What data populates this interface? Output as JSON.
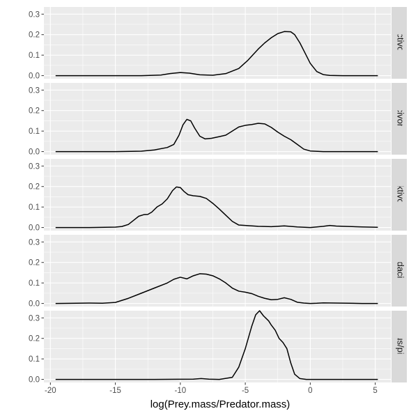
{
  "chart_data": {
    "type": "line",
    "subtype": "density",
    "facet": "rows",
    "xlabel": "log(Prey.mass/Predator.mass)",
    "ylabel": "",
    "xlim": [
      -20.5,
      6.2
    ],
    "ylim": [
      -0.015,
      0.335
    ],
    "x_ticks": [
      -20,
      -15,
      -10,
      -5,
      0,
      5
    ],
    "x_tick_labels": [
      "-20",
      "-15",
      "-10",
      "-5",
      "0",
      "5"
    ],
    "y_ticks": [
      0.0,
      0.1,
      0.2,
      0.3
    ],
    "y_tick_labels": [
      "0.0",
      "0.1",
      "0.2",
      "0.3"
    ],
    "grid": true,
    "panels": [
      {
        "strip_label": "insectivorous",
        "x": [
          -19.6,
          -16,
          -13,
          -11.5,
          -10.8,
          -10,
          -9.3,
          -8.5,
          -7.5,
          -6.5,
          -5.5,
          -4.8,
          -4,
          -3.5,
          -3,
          -2.5,
          -2,
          -1.5,
          -1.2,
          -0.8,
          -0.4,
          0,
          0.5,
          1,
          1.5,
          2.5,
          5.2
        ],
        "y": [
          0.0,
          0.0,
          0.0,
          0.003,
          0.01,
          0.015,
          0.012,
          0.004,
          0.002,
          0.01,
          0.035,
          0.075,
          0.13,
          0.16,
          0.185,
          0.205,
          0.215,
          0.214,
          0.2,
          0.16,
          0.11,
          0.06,
          0.02,
          0.005,
          0.001,
          0.0,
          0.0
        ]
      },
      {
        "strip_label": "piscivorous",
        "x": [
          -19.6,
          -15,
          -13,
          -12,
          -11,
          -10.5,
          -10.1,
          -9.8,
          -9.5,
          -9.2,
          -8.9,
          -8.5,
          -8.1,
          -7.6,
          -7,
          -6.5,
          -6,
          -5.5,
          -5,
          -4.5,
          -4,
          -3.5,
          -3,
          -2.5,
          -2,
          -1.5,
          -1,
          -0.5,
          0,
          1,
          5.2
        ],
        "y": [
          0.0,
          0.0,
          0.002,
          0.008,
          0.02,
          0.035,
          0.08,
          0.13,
          0.157,
          0.15,
          0.115,
          0.075,
          0.062,
          0.065,
          0.073,
          0.08,
          0.1,
          0.12,
          0.128,
          0.132,
          0.138,
          0.135,
          0.118,
          0.095,
          0.075,
          0.058,
          0.035,
          0.012,
          0.003,
          0.0,
          0.0
        ]
      },
      {
        "strip_label": "planktivorous",
        "x": [
          -19.6,
          -17,
          -15,
          -14.5,
          -14,
          -13.6,
          -13.2,
          -12.8,
          -12.5,
          -12.2,
          -11.8,
          -11.4,
          -11,
          -10.6,
          -10.3,
          -10,
          -9.7,
          -9.4,
          -9,
          -8.5,
          -8,
          -7.5,
          -7,
          -6.5,
          -6,
          -5.5,
          -5,
          -4,
          -3,
          -2,
          -1,
          0,
          1,
          1.5,
          2,
          3,
          4,
          5.2
        ],
        "y": [
          0.0,
          0.0,
          0.002,
          0.005,
          0.015,
          0.035,
          0.055,
          0.063,
          0.064,
          0.075,
          0.1,
          0.115,
          0.14,
          0.18,
          0.198,
          0.195,
          0.175,
          0.16,
          0.155,
          0.152,
          0.142,
          0.118,
          0.09,
          0.06,
          0.03,
          0.012,
          0.01,
          0.006,
          0.004,
          0.008,
          0.003,
          0.0,
          0.006,
          0.01,
          0.007,
          0.005,
          0.003,
          0.001
        ]
      },
      {
        "strip_label": "predacious",
        "x": [
          -19.6,
          -18,
          -17,
          -16,
          -15,
          -14,
          -13,
          -12,
          -11,
          -10.5,
          -10,
          -9.5,
          -9,
          -8.5,
          -8,
          -7.5,
          -7,
          -6.5,
          -6,
          -5.5,
          -5,
          -4.5,
          -4,
          -3.5,
          -3,
          -2.5,
          -2,
          -1.5,
          -1,
          -0.5,
          0,
          0.5,
          1,
          2,
          3,
          4,
          5.2
        ],
        "y": [
          0.0,
          0.001,
          0.002,
          0.001,
          0.005,
          0.025,
          0.05,
          0.075,
          0.1,
          0.118,
          0.128,
          0.12,
          0.135,
          0.145,
          0.143,
          0.135,
          0.12,
          0.1,
          0.075,
          0.06,
          0.055,
          0.048,
          0.035,
          0.025,
          0.018,
          0.02,
          0.028,
          0.02,
          0.006,
          0.002,
          0.0,
          0.001,
          0.003,
          0.002,
          0.001,
          0.0,
          0.0
        ]
      },
      {
        "strip_label": "predacious/piscivorous",
        "x": [
          -19.6,
          -12,
          -9,
          -8.4,
          -7.8,
          -7,
          -6,
          -5.5,
          -5,
          -4.5,
          -4.2,
          -3.9,
          -3.6,
          -3.2,
          -3,
          -2.7,
          -2.4,
          -2.1,
          -1.8,
          -1.5,
          -1.2,
          -0.8,
          -0.3,
          0.5,
          5.2
        ],
        "y": [
          0.0,
          0.0,
          0.001,
          0.004,
          0.001,
          0.0,
          0.01,
          0.06,
          0.15,
          0.26,
          0.315,
          0.335,
          0.31,
          0.285,
          0.265,
          0.24,
          0.2,
          0.18,
          0.15,
          0.08,
          0.025,
          0.004,
          0.0,
          0.0,
          0.0
        ]
      }
    ]
  }
}
